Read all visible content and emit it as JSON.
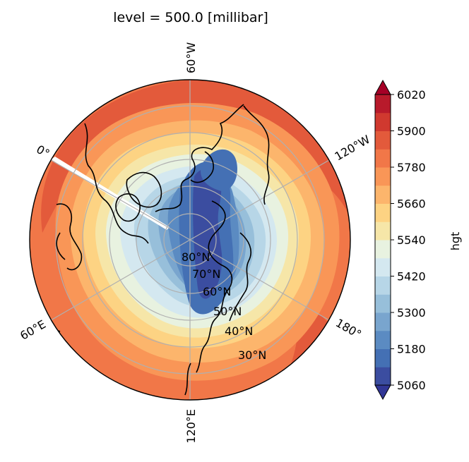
{
  "title": "level = 500.0 [millibar]",
  "map": {
    "projection": "north-polar-stereographic",
    "variable": "hgt",
    "longitude_labels": [
      {
        "text": "60°W",
        "lon": -60
      },
      {
        "text": "120°W",
        "lon": -120
      },
      {
        "text": "180°",
        "lon": 180
      },
      {
        "text": "120°E",
        "lon": 120
      },
      {
        "text": "60°E",
        "lon": 60
      },
      {
        "text": "0°",
        "lon": 0
      }
    ],
    "latitude_labels": [
      "80°N",
      "70°N",
      "60°N",
      "50°N",
      "40°N",
      "30°N"
    ],
    "gridline_color": "#b0b0b0",
    "coastline_color": "#000000"
  },
  "colorbar": {
    "label": "hgt",
    "tick_labels": [
      "5060",
      "5180",
      "5300",
      "5420",
      "5540",
      "5660",
      "5780",
      "5900",
      "6020"
    ],
    "levels_min": 5060,
    "levels_max": 6020,
    "level_step": 60,
    "extend": "both",
    "colormap": "RdYlBu_r",
    "colors": [
      "#3b4da0",
      "#4470b4",
      "#5b8bc2",
      "#79a5ce",
      "#97bfda",
      "#b7d6e7",
      "#d4e8f0",
      "#e8f2e0",
      "#f6e6a8",
      "#fdd383",
      "#fcb56c",
      "#f99657",
      "#f17748",
      "#e35a3b",
      "#d0392f",
      "#b81a2b"
    ],
    "under_color": "#313695",
    "over_color": "#a50026"
  }
}
